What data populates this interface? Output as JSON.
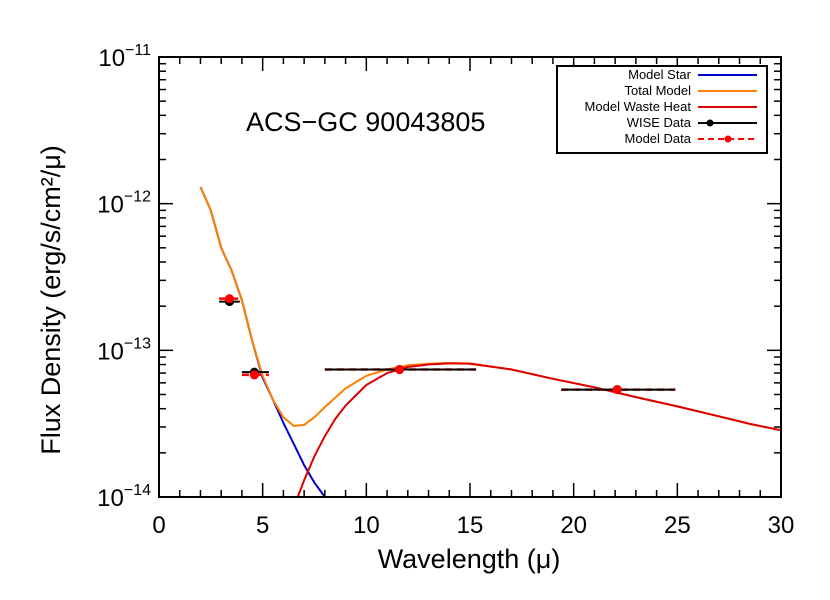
{
  "chart_data": {
    "type": "line",
    "title": "ACS−GC 90043805",
    "xlabel": "Wavelength (μ)",
    "ylabel": "Flux Density (erg/s/cm²/μ)",
    "xlim": [
      0,
      30
    ],
    "ylim": [
      1e-14,
      1e-11
    ],
    "yscale": "log",
    "x_ticks": [
      0,
      5,
      10,
      15,
      20,
      25,
      30
    ],
    "x_tick_labels": [
      "0",
      "5",
      "10",
      "15",
      "20",
      "25",
      "30"
    ],
    "y_ticks": [
      {
        "value": 1e-14,
        "base": "10",
        "exp": "−14"
      },
      {
        "value": 1e-13,
        "base": "10",
        "exp": "−13"
      },
      {
        "value": 1e-12,
        "base": "10",
        "exp": "−12"
      },
      {
        "value": 1e-11,
        "base": "10",
        "exp": "−11"
      }
    ],
    "legend_position": "top-right",
    "series": [
      {
        "name": "Model Star",
        "color": "#0000cc",
        "style": "line",
        "x": [
          2.0,
          2.5,
          3.0,
          3.5,
          4.0,
          4.5,
          5.0,
          5.5,
          6.0,
          6.5,
          7.0,
          7.5,
          8.0
        ],
        "y": [
          1.3e-12,
          9e-13,
          5e-13,
          3.5e-13,
          2.2e-13,
          1.15e-13,
          6.5e-14,
          4.6e-14,
          3.2e-14,
          2.3e-14,
          1.65e-14,
          1.25e-14,
          1e-14
        ]
      },
      {
        "name": "Total Model",
        "color": "#ff8000",
        "style": "line",
        "x": [
          2.0,
          2.5,
          3.0,
          3.5,
          4.0,
          4.5,
          5.0,
          5.5,
          6.0,
          6.5,
          7.0,
          7.5,
          8.0,
          9.0,
          10.0,
          11.0,
          12.0,
          13.0,
          14.0,
          15.0,
          17.0,
          19.0,
          21.0,
          23.0,
          25.0,
          27.0,
          28.5,
          30.0
        ],
        "y": [
          1.3e-12,
          9e-13,
          5e-13,
          3.5e-13,
          2.2e-13,
          1.15e-13,
          6.7e-14,
          4.6e-14,
          3.5e-14,
          3.05e-14,
          3.1e-14,
          3.5e-14,
          4.1e-14,
          5.5e-14,
          6.7e-14,
          7.4e-14,
          7.9e-14,
          8.1e-14,
          8.2e-14,
          8.15e-14,
          7.4e-14,
          6.4e-14,
          5.6e-14,
          4.8e-14,
          4.15e-14,
          3.55e-14,
          3.15e-14,
          2.85e-14
        ]
      },
      {
        "name": "Model Waste Heat",
        "color": "#dd0000",
        "style": "line",
        "x": [
          6.5,
          7.0,
          7.5,
          8.0,
          8.5,
          9.0,
          10.0,
          11.0,
          12.0,
          13.0,
          14.0,
          15.0,
          17.0,
          19.0,
          21.0,
          23.0,
          25.0,
          27.0,
          28.5,
          30.0
        ],
        "y": [
          8.5e-15,
          1.3e-14,
          1.9e-14,
          2.6e-14,
          3.4e-14,
          4.2e-14,
          5.8e-14,
          7e-14,
          7.7e-14,
          8e-14,
          8.15e-14,
          8.1e-14,
          7.4e-14,
          6.4e-14,
          5.6e-14,
          4.8e-14,
          4.15e-14,
          3.55e-14,
          3.15e-14,
          2.85e-14
        ]
      }
    ],
    "wise_data": {
      "name": "WISE Data",
      "color": "#000000",
      "points": [
        {
          "x": 3.4,
          "y": 2.15e-13,
          "xerr": [
            2.9,
            3.9
          ]
        },
        {
          "x": 4.6,
          "y": 7.1e-14,
          "xerr": [
            4.0,
            5.3
          ]
        },
        {
          "x": 11.6,
          "y": 7.4e-14,
          "xerr": [
            8.0,
            15.3
          ]
        },
        {
          "x": 22.1,
          "y": 5.4e-14,
          "xerr": [
            19.4,
            24.9
          ]
        }
      ]
    },
    "model_data": {
      "name": "Model Data",
      "color": "#ff0000",
      "points": [
        {
          "x": 3.4,
          "y": 2.25e-13,
          "xerr": [
            2.9,
            3.9
          ]
        },
        {
          "x": 4.6,
          "y": 6.8e-14,
          "xerr": [
            4.0,
            5.3
          ]
        },
        {
          "x": 11.6,
          "y": 7.4e-14,
          "xerr": [
            8.0,
            15.3
          ]
        },
        {
          "x": 22.1,
          "y": 5.4e-14,
          "xerr": [
            19.4,
            24.9
          ]
        }
      ]
    }
  }
}
